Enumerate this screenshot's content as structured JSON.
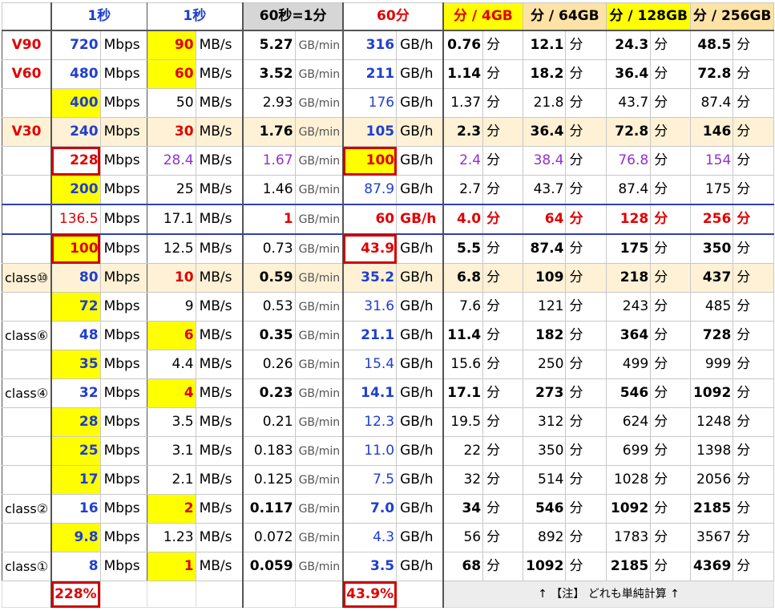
{
  "headers": [
    "",
    "1秒",
    "",
    "1秒",
    "",
    "60秒=1分",
    "",
    "60分",
    "",
    "分 / 4GB",
    "",
    "分 / 64GB",
    "",
    "分 / 128GB",
    "",
    "分 / 256GB",
    ""
  ],
  "rows": [
    {
      "label": "V90",
      "mbps": "720",
      "mbs": "90",
      "gbmin": "5.27",
      "gbh": "316",
      "m4": "0.76",
      "m64": "12.1",
      "m128": "24.3",
      "m256": "48.5"
    },
    {
      "label": "V60",
      "mbps": "480",
      "mbs": "60",
      "gbmin": "3.52",
      "gbh": "211",
      "m4": "1.14",
      "m64": "18.2",
      "m128": "36.4",
      "m256": "72.8"
    },
    {
      "label": "",
      "mbps": "400",
      "mbs": "50",
      "gbmin": "2.93",
      "gbh": "176",
      "m4": "1.37",
      "m64": "21.8",
      "m128": "43.7",
      "m256": "87.4"
    },
    {
      "label": "V30",
      "mbps": "240",
      "mbs": "30",
      "gbmin": "1.76",
      "gbh": "105",
      "m4": "2.3",
      "m64": "36.4",
      "m128": "72.8",
      "m256": "146"
    },
    {
      "label": "",
      "mbps": "228",
      "mbs": "28.4",
      "gbmin": "1.67",
      "gbh": "100",
      "m4": "2.4",
      "m64": "38.4",
      "m128": "76.8",
      "m256": "154"
    },
    {
      "label": "",
      "mbps": "200",
      "mbs": "25",
      "gbmin": "1.46",
      "gbh": "87.9",
      "m4": "2.7",
      "m64": "43.7",
      "m128": "87.4",
      "m256": "175"
    },
    {
      "label": "",
      "mbps": "136.5",
      "mbs": "17.1",
      "gbmin": "1",
      "gbh": "60",
      "m4": "4.0",
      "m64": "64",
      "m128": "128",
      "m256": "256"
    },
    {
      "label": "",
      "mbps": "100",
      "mbs": "12.5",
      "gbmin": "0.73",
      "gbh": "43.9",
      "m4": "5.5",
      "m64": "87.4",
      "m128": "175",
      "m256": "350"
    },
    {
      "label": "class⑩",
      "mbps": "80",
      "mbs": "10",
      "gbmin": "0.59",
      "gbh": "35.2",
      "m4": "6.8",
      "m64": "109",
      "m128": "218",
      "m256": "437"
    },
    {
      "label": "",
      "mbps": "72",
      "mbs": "9",
      "gbmin": "0.53",
      "gbh": "31.6",
      "m4": "7.6",
      "m64": "121",
      "m128": "243",
      "m256": "485"
    },
    {
      "label": "class⑥",
      "mbps": "48",
      "mbs": "6",
      "gbmin": "0.35",
      "gbh": "21.1",
      "m4": "11.4",
      "m64": "182",
      "m128": "364",
      "m256": "728"
    },
    {
      "label": "",
      "mbps": "35",
      "mbs": "4.4",
      "gbmin": "0.26",
      "gbh": "15.4",
      "m4": "15.6",
      "m64": "250",
      "m128": "499",
      "m256": "999"
    },
    {
      "label": "class④",
      "mbps": "32",
      "mbs": "4",
      "gbmin": "0.23",
      "gbh": "14.1",
      "m4": "17.1",
      "m64": "273",
      "m128": "546",
      "m256": "1092"
    },
    {
      "label": "",
      "mbps": "28",
      "mbs": "3.5",
      "gbmin": "0.21",
      "gbh": "12.3",
      "m4": "19.5",
      "m64": "312",
      "m128": "624",
      "m256": "1248"
    },
    {
      "label": "",
      "mbps": "25",
      "mbs": "3.1",
      "gbmin": "0.183",
      "gbh": "11.0",
      "m4": "22",
      "m64": "350",
      "m128": "699",
      "m256": "1398"
    },
    {
      "label": "",
      "mbps": "17",
      "mbs": "2.1",
      "gbmin": "0.125",
      "gbh": "7.5",
      "m4": "32",
      "m64": "514",
      "m128": "1028",
      "m256": "2056"
    },
    {
      "label": "class②",
      "mbps": "16",
      "mbs": "2",
      "gbmin": "0.117",
      "gbh": "7.0",
      "m4": "34",
      "m64": "546",
      "m128": "1092",
      "m256": "2185"
    },
    {
      "label": "",
      "mbps": "9.8",
      "mbs": "1.23",
      "gbmin": "0.072",
      "gbh": "4.3",
      "m4": "56",
      "m64": "892",
      "m128": "1783",
      "m256": "3567"
    },
    {
      "label": "class①",
      "mbps": "8",
      "mbs": "1",
      "gbmin": "0.059",
      "gbh": "3.5",
      "m4": "68",
      "m64": "1092",
      "m128": "2185",
      "m256": "4369"
    }
  ],
  "units": {
    "mbps": "Mbps",
    "mbs": "MB/s",
    "gbmin": "GB/min",
    "gbh": "GB/h",
    "min": "分"
  },
  "footer": {
    "pct_mbps": "228%",
    "pct_gbh": "43.9%",
    "note": "↑ 【注】 どれも単純計算 ↑"
  }
}
